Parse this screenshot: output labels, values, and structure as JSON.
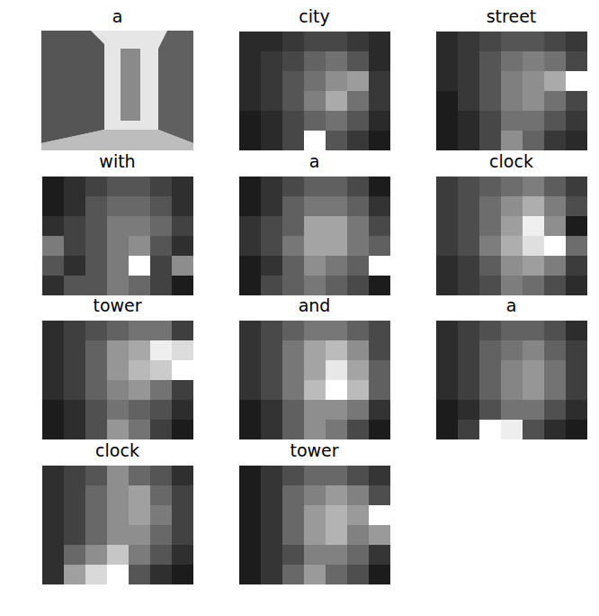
{
  "chart_data": [
    {
      "type": "image",
      "title": "a"
    },
    {
      "type": "heatmap",
      "title": "city",
      "tick_labels": false,
      "cells": [
        [
          0.2,
          0.2,
          0.25,
          0.3,
          0.3,
          0.25,
          0.2
        ],
        [
          0.2,
          0.25,
          0.3,
          0.4,
          0.45,
          0.35,
          0.2
        ],
        [
          0.2,
          0.25,
          0.35,
          0.45,
          0.55,
          0.6,
          0.25
        ],
        [
          0.2,
          0.25,
          0.35,
          0.5,
          0.65,
          0.45,
          0.25
        ],
        [
          0.15,
          0.2,
          0.3,
          0.4,
          0.45,
          0.35,
          0.2
        ],
        [
          0.15,
          0.2,
          0.3,
          0.95,
          0.35,
          0.25,
          0.15
        ]
      ]
    },
    {
      "type": "heatmap",
      "title": "street",
      "tick_labels": false,
      "cells": [
        [
          0.25,
          0.3,
          0.35,
          0.4,
          0.4,
          0.35,
          0.3
        ],
        [
          0.25,
          0.3,
          0.4,
          0.5,
          0.55,
          0.5,
          0.35
        ],
        [
          0.25,
          0.3,
          0.4,
          0.55,
          0.6,
          0.7,
          1.0
        ],
        [
          0.2,
          0.3,
          0.4,
          0.55,
          0.6,
          0.5,
          0.35
        ],
        [
          0.2,
          0.25,
          0.35,
          0.5,
          0.5,
          0.4,
          0.3
        ],
        [
          0.2,
          0.25,
          0.35,
          0.6,
          0.45,
          0.3,
          0.25
        ]
      ]
    },
    {
      "type": "heatmap",
      "title": "with",
      "tick_labels": false,
      "cells": [
        [
          0.3,
          0.35,
          0.4,
          0.45,
          0.45,
          0.4,
          0.35
        ],
        [
          0.3,
          0.35,
          0.45,
          0.5,
          0.5,
          0.45,
          0.35
        ],
        [
          0.35,
          0.4,
          0.45,
          0.55,
          0.55,
          0.5,
          0.4
        ],
        [
          0.55,
          0.4,
          0.45,
          0.55,
          0.6,
          0.45,
          0.35
        ],
        [
          0.45,
          0.35,
          0.45,
          0.55,
          0.9,
          0.4,
          0.6
        ],
        [
          0.35,
          0.45,
          0.45,
          0.55,
          0.5,
          0.4,
          0.3
        ]
      ]
    },
    {
      "type": "heatmap",
      "title": "a",
      "tick_labels": false,
      "cells": [
        [
          0.3,
          0.35,
          0.4,
          0.45,
          0.45,
          0.4,
          0.3
        ],
        [
          0.3,
          0.35,
          0.45,
          0.5,
          0.5,
          0.45,
          0.35
        ],
        [
          0.35,
          0.4,
          0.45,
          0.6,
          0.6,
          0.5,
          0.4
        ],
        [
          0.35,
          0.4,
          0.5,
          0.6,
          0.6,
          0.5,
          0.45
        ],
        [
          0.3,
          0.35,
          0.45,
          0.55,
          0.5,
          0.45,
          0.8
        ],
        [
          0.3,
          0.4,
          0.45,
          0.5,
          0.45,
          0.4,
          0.3
        ]
      ]
    },
    {
      "type": "heatmap",
      "title": "clock",
      "tick_labels": false,
      "cells": [
        [
          0.25,
          0.3,
          0.35,
          0.4,
          0.45,
          0.35,
          0.25
        ],
        [
          0.25,
          0.3,
          0.4,
          0.5,
          0.6,
          0.45,
          0.3
        ],
        [
          0.25,
          0.3,
          0.4,
          0.55,
          0.8,
          0.5,
          0.15
        ],
        [
          0.25,
          0.3,
          0.45,
          0.6,
          0.75,
          0.85,
          0.4
        ],
        [
          0.2,
          0.25,
          0.35,
          0.5,
          0.55,
          0.45,
          0.25
        ],
        [
          0.2,
          0.25,
          0.3,
          0.45,
          0.4,
          0.3,
          0.2
        ]
      ]
    },
    {
      "type": "heatmap",
      "title": "tower",
      "tick_labels": false,
      "cells": [
        [
          0.25,
          0.3,
          0.35,
          0.4,
          0.45,
          0.45,
          0.3
        ],
        [
          0.25,
          0.3,
          0.4,
          0.55,
          0.6,
          0.8,
          0.75
        ],
        [
          0.25,
          0.3,
          0.4,
          0.55,
          0.65,
          0.7,
          0.85
        ],
        [
          0.25,
          0.3,
          0.4,
          0.5,
          0.55,
          0.45,
          0.3
        ],
        [
          0.2,
          0.25,
          0.35,
          0.45,
          0.4,
          0.35,
          0.25
        ],
        [
          0.2,
          0.25,
          0.35,
          0.55,
          0.45,
          0.3,
          0.2
        ]
      ]
    },
    {
      "type": "heatmap",
      "title": "and",
      "tick_labels": false,
      "cells": [
        [
          0.3,
          0.35,
          0.4,
          0.45,
          0.45,
          0.4,
          0.35
        ],
        [
          0.3,
          0.35,
          0.45,
          0.55,
          0.6,
          0.5,
          0.35
        ],
        [
          0.3,
          0.35,
          0.45,
          0.55,
          0.7,
          0.55,
          0.4
        ],
        [
          0.3,
          0.35,
          0.45,
          0.6,
          0.75,
          0.6,
          0.4
        ],
        [
          0.25,
          0.3,
          0.4,
          0.5,
          0.5,
          0.45,
          0.3
        ],
        [
          0.25,
          0.3,
          0.4,
          0.5,
          0.45,
          0.35,
          0.25
        ]
      ]
    },
    {
      "type": "heatmap",
      "title": "a",
      "tick_labels": false,
      "cells": [
        [
          0.3,
          0.35,
          0.4,
          0.45,
          0.45,
          0.4,
          0.3
        ],
        [
          0.3,
          0.35,
          0.45,
          0.5,
          0.55,
          0.45,
          0.35
        ],
        [
          0.3,
          0.35,
          0.45,
          0.55,
          0.6,
          0.5,
          0.35
        ],
        [
          0.3,
          0.35,
          0.45,
          0.55,
          0.6,
          0.5,
          0.35
        ],
        [
          0.25,
          0.3,
          0.4,
          0.5,
          0.5,
          0.4,
          0.3
        ],
        [
          0.25,
          0.35,
          0.9,
          0.85,
          0.4,
          0.3,
          0.25
        ]
      ]
    },
    {
      "type": "heatmap",
      "title": "clock",
      "tick_labels": false,
      "cells": [
        [
          0.3,
          0.35,
          0.4,
          0.55,
          0.45,
          0.4,
          0.3
        ],
        [
          0.3,
          0.35,
          0.45,
          0.55,
          0.6,
          0.45,
          0.35
        ],
        [
          0.3,
          0.35,
          0.45,
          0.55,
          0.6,
          0.5,
          0.35
        ],
        [
          0.3,
          0.35,
          0.45,
          0.55,
          0.55,
          0.45,
          0.35
        ],
        [
          0.3,
          0.45,
          0.55,
          0.7,
          0.5,
          0.4,
          0.3
        ],
        [
          0.3,
          0.6,
          0.75,
          0.85,
          0.4,
          0.3,
          0.25
        ]
      ]
    },
    {
      "type": "heatmap",
      "title": "tower",
      "tick_labels": false,
      "cells": [
        [
          0.3,
          0.35,
          0.4,
          0.45,
          0.45,
          0.4,
          0.35
        ],
        [
          0.3,
          0.35,
          0.45,
          0.5,
          0.55,
          0.5,
          0.4
        ],
        [
          0.3,
          0.35,
          0.45,
          0.55,
          0.6,
          0.55,
          0.75
        ],
        [
          0.3,
          0.35,
          0.45,
          0.55,
          0.6,
          0.5,
          0.55
        ],
        [
          0.3,
          0.35,
          0.4,
          0.5,
          0.5,
          0.45,
          0.35
        ],
        [
          0.3,
          0.35,
          0.45,
          0.55,
          0.45,
          0.4,
          0.3
        ]
      ]
    }
  ]
}
